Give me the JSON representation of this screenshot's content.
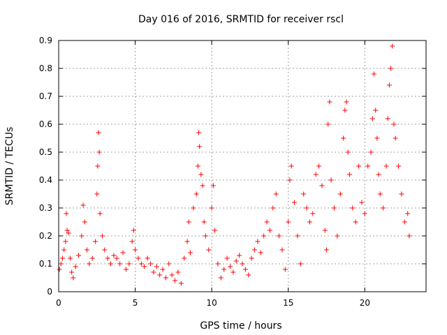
{
  "chart_data": {
    "type": "scatter",
    "title": "Day 016 of 2016, SRMTID for receiver rscl",
    "xlabel": "GPS time / hours",
    "ylabel": "SRMTID / TECUs",
    "xlim": [
      0,
      24
    ],
    "ylim": [
      0,
      0.9
    ],
    "x_ticks": [
      0,
      5,
      10,
      15,
      20
    ],
    "x_tick_labels": [
      "0",
      "5",
      "10",
      "15",
      "20"
    ],
    "y_ticks": [
      0,
      0.1,
      0.2,
      0.3,
      0.4,
      0.5,
      0.6,
      0.7,
      0.8,
      0.9
    ],
    "y_tick_labels": [
      "0",
      "0.1",
      "0.2",
      "0.3",
      "0.4",
      "0.5",
      "0.6",
      "0.7",
      "0.8",
      "0.9"
    ],
    "grid": true,
    "marker": "plus",
    "color": "#ff0000",
    "series": [
      {
        "name": "SRMTID",
        "points": [
          [
            0.05,
            0.08
          ],
          [
            0.15,
            0.1
          ],
          [
            0.25,
            0.12
          ],
          [
            0.35,
            0.15
          ],
          [
            0.45,
            0.18
          ],
          [
            0.5,
            0.28
          ],
          [
            0.55,
            0.22
          ],
          [
            0.65,
            0.21
          ],
          [
            0.75,
            0.12
          ],
          [
            0.85,
            0.07
          ],
          [
            0.95,
            0.05
          ],
          [
            1.1,
            0.09
          ],
          [
            1.3,
            0.13
          ],
          [
            1.5,
            0.2
          ],
          [
            1.6,
            0.31
          ],
          [
            1.7,
            0.25
          ],
          [
            1.85,
            0.15
          ],
          [
            2.0,
            0.1
          ],
          [
            2.2,
            0.12
          ],
          [
            2.4,
            0.18
          ],
          [
            2.5,
            0.35
          ],
          [
            2.55,
            0.45
          ],
          [
            2.6,
            0.57
          ],
          [
            2.65,
            0.5
          ],
          [
            2.7,
            0.28
          ],
          [
            2.85,
            0.2
          ],
          [
            3.0,
            0.15
          ],
          [
            3.2,
            0.12
          ],
          [
            3.4,
            0.1
          ],
          [
            3.6,
            0.13
          ],
          [
            3.8,
            0.12
          ],
          [
            4.0,
            0.1
          ],
          [
            4.2,
            0.14
          ],
          [
            4.4,
            0.08
          ],
          [
            4.6,
            0.1
          ],
          [
            4.8,
            0.18
          ],
          [
            4.9,
            0.22
          ],
          [
            5.0,
            0.15
          ],
          [
            5.2,
            0.12
          ],
          [
            5.4,
            0.1
          ],
          [
            5.6,
            0.09
          ],
          [
            5.8,
            0.12
          ],
          [
            6.0,
            0.1
          ],
          [
            6.2,
            0.07
          ],
          [
            6.4,
            0.09
          ],
          [
            6.6,
            0.06
          ],
          [
            6.8,
            0.08
          ],
          [
            7.0,
            0.05
          ],
          [
            7.2,
            0.1
          ],
          [
            7.4,
            0.06
          ],
          [
            7.6,
            0.04
          ],
          [
            7.8,
            0.07
          ],
          [
            8.0,
            0.03
          ],
          [
            8.2,
            0.12
          ],
          [
            8.4,
            0.18
          ],
          [
            8.5,
            0.25
          ],
          [
            8.6,
            0.14
          ],
          [
            8.8,
            0.3
          ],
          [
            9.0,
            0.35
          ],
          [
            9.1,
            0.45
          ],
          [
            9.15,
            0.57
          ],
          [
            9.2,
            0.52
          ],
          [
            9.3,
            0.42
          ],
          [
            9.4,
            0.38
          ],
          [
            9.5,
            0.25
          ],
          [
            9.6,
            0.2
          ],
          [
            9.8,
            0.15
          ],
          [
            10.0,
            0.3
          ],
          [
            10.1,
            0.38
          ],
          [
            10.2,
            0.22
          ],
          [
            10.4,
            0.1
          ],
          [
            10.6,
            0.05
          ],
          [
            10.8,
            0.08
          ],
          [
            11.0,
            0.12
          ],
          [
            11.2,
            0.09
          ],
          [
            11.4,
            0.07
          ],
          [
            11.6,
            0.11
          ],
          [
            11.8,
            0.13
          ],
          [
            12.0,
            0.1
          ],
          [
            12.2,
            0.08
          ],
          [
            12.4,
            0.06
          ],
          [
            12.6,
            0.12
          ],
          [
            12.8,
            0.15
          ],
          [
            13.0,
            0.18
          ],
          [
            13.2,
            0.14
          ],
          [
            13.4,
            0.2
          ],
          [
            13.6,
            0.25
          ],
          [
            13.8,
            0.22
          ],
          [
            14.0,
            0.3
          ],
          [
            14.2,
            0.35
          ],
          [
            14.4,
            0.2
          ],
          [
            14.6,
            0.15
          ],
          [
            14.8,
            0.08
          ],
          [
            15.0,
            0.25
          ],
          [
            15.1,
            0.4
          ],
          [
            15.2,
            0.45
          ],
          [
            15.4,
            0.32
          ],
          [
            15.6,
            0.2
          ],
          [
            15.8,
            0.1
          ],
          [
            16.0,
            0.35
          ],
          [
            16.2,
            0.3
          ],
          [
            16.4,
            0.25
          ],
          [
            16.6,
            0.28
          ],
          [
            16.8,
            0.42
          ],
          [
            17.0,
            0.45
          ],
          [
            17.2,
            0.38
          ],
          [
            17.4,
            0.22
          ],
          [
            17.5,
            0.15
          ],
          [
            17.6,
            0.6
          ],
          [
            17.7,
            0.68
          ],
          [
            17.8,
            0.4
          ],
          [
            18.0,
            0.3
          ],
          [
            18.2,
            0.2
          ],
          [
            18.4,
            0.35
          ],
          [
            18.6,
            0.55
          ],
          [
            18.7,
            0.65
          ],
          [
            18.8,
            0.68
          ],
          [
            18.9,
            0.5
          ],
          [
            19.0,
            0.42
          ],
          [
            19.2,
            0.3
          ],
          [
            19.4,
            0.25
          ],
          [
            19.6,
            0.45
          ],
          [
            19.8,
            0.32
          ],
          [
            20.0,
            0.28
          ],
          [
            20.2,
            0.45
          ],
          [
            20.4,
            0.5
          ],
          [
            20.5,
            0.62
          ],
          [
            20.6,
            0.78
          ],
          [
            20.7,
            0.65
          ],
          [
            20.8,
            0.55
          ],
          [
            20.9,
            0.42
          ],
          [
            21.0,
            0.35
          ],
          [
            21.2,
            0.3
          ],
          [
            21.4,
            0.45
          ],
          [
            21.5,
            0.62
          ],
          [
            21.6,
            0.74
          ],
          [
            21.7,
            0.8
          ],
          [
            21.8,
            0.88
          ],
          [
            21.9,
            0.6
          ],
          [
            22.0,
            0.55
          ],
          [
            22.2,
            0.45
          ],
          [
            22.4,
            0.35
          ],
          [
            22.6,
            0.25
          ],
          [
            22.8,
            0.28
          ],
          [
            22.9,
            0.2
          ]
        ]
      }
    ]
  }
}
